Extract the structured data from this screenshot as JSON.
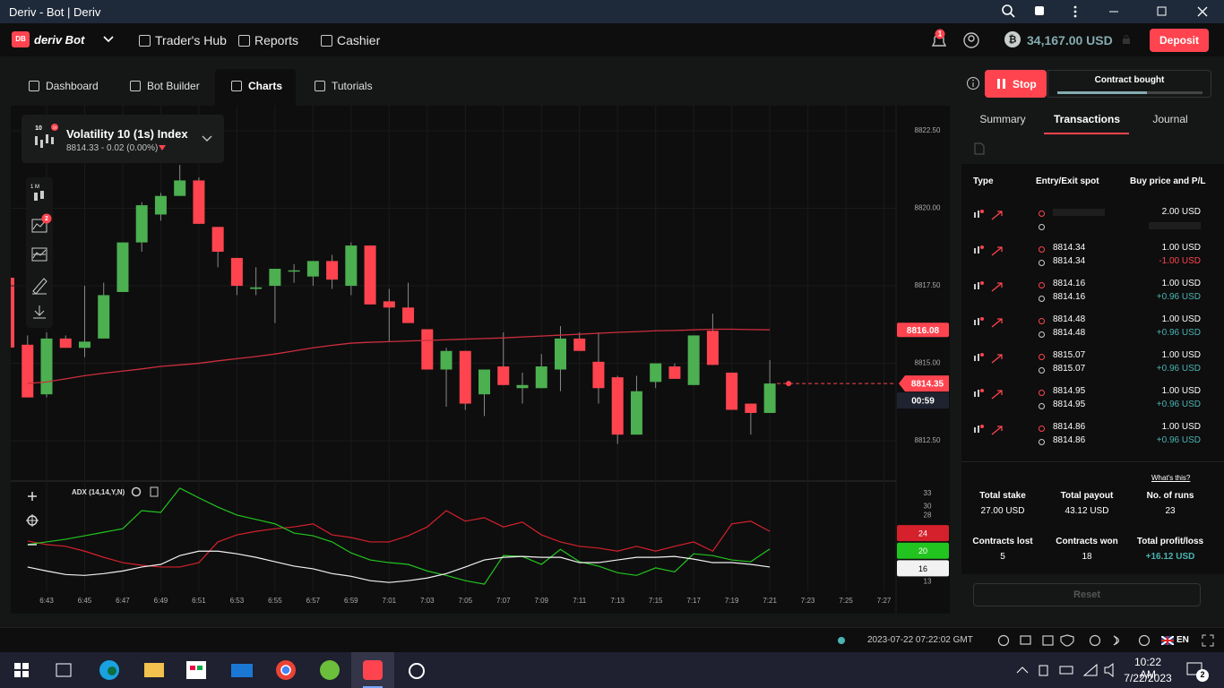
{
  "window": {
    "title": "Deriv - Bot | Deriv"
  },
  "header": {
    "badge": "DB",
    "brand": "deriv Bot",
    "nav": [
      "Trader's Hub",
      "Reports",
      "Cashier"
    ],
    "notifications": "1",
    "balance": "34,167.00 USD",
    "deposit": "Deposit"
  },
  "tabs": [
    "Dashboard",
    "Bot Builder",
    "Charts",
    "Tutorials"
  ],
  "symbol": {
    "name": "Volatility 10 (1s) Index",
    "quote": "8814.33 - 0.02 (0.00%)",
    "icon_label": "10",
    "icon_badge": "1s"
  },
  "toolbar": {
    "interval": "1 M",
    "indicator_count": "2"
  },
  "chart_data": [
    {
      "type": "candlestick",
      "categories": [
        null,
        "6:43",
        null,
        "6:45",
        null,
        "6:47",
        null,
        "6:49",
        null,
        "6:51",
        null,
        "6:53",
        null,
        "6:55",
        null,
        "6:57",
        null,
        "6:59",
        null,
        "7:01",
        null,
        "7:03",
        null,
        "7:05",
        null,
        "7:07",
        null,
        "7:09",
        null,
        "7:11",
        null,
        "7:13",
        null,
        "7:15",
        null,
        "7:17",
        null,
        "7:19",
        null,
        "7:21",
        null,
        "7:23",
        null,
        "7:25",
        null,
        "7:27"
      ],
      "open": [
        8815.6,
        8814.0,
        8815.8,
        8815.5,
        8815.8,
        8817.3,
        8818.9,
        8819.8,
        8820.4,
        8820.9,
        8819.4,
        8818.4,
        8817.4,
        8817.5,
        8817.98,
        8817.8,
        8818.3,
        8817.5,
        8818.8,
        8817.0,
        8816.8,
        8816.1,
        8814.8,
        8815.4,
        8814.0,
        8814.9,
        8814.2,
        8814.2,
        8814.8,
        8815.8,
        8815.05,
        8814.55,
        8812.7,
        8814.4,
        8814.9,
        8814.3,
        8816.05,
        8814.7,
        8813.7,
        8813.4,
        null,
        null,
        null,
        null,
        null,
        null
      ],
      "high": [
        8815.9,
        8816.0,
        8815.9,
        8817.5,
        8817.6,
        8818.9,
        8820.2,
        8820.5,
        8821.4,
        8821.0,
        8819.4,
        8818.4,
        8818.1,
        8818.05,
        8818.2,
        8818.3,
        8818.5,
        8818.9,
        8818.8,
        8817.4,
        8817.6,
        8816.1,
        8815.5,
        8815.4,
        8814.8,
        8816.0,
        8814.7,
        8815.3,
        8816.2,
        8816.0,
        8816.0,
        8814.6,
        8814.6,
        8815.0,
        8815.0,
        8815.9,
        8816.6,
        8814.7,
        8813.7,
        8815.1,
        null,
        null,
        null,
        null,
        null,
        null
      ],
      "low": [
        8813.9,
        8813.9,
        8815.5,
        8815.2,
        8815.8,
        8817.3,
        8818.6,
        8819.6,
        8820.4,
        8819.5,
        8818.1,
        8817.2,
        8817.2,
        8816.3,
        8817.6,
        8817.5,
        8817.4,
        8817.2,
        8816.9,
        8815.7,
        8816.3,
        8814.8,
        8813.6,
        8813.5,
        8813.3,
        8814.3,
        8813.7,
        8814.2,
        8814.1,
        8815.4,
        8813.7,
        8812.4,
        8812.7,
        8814.2,
        8814.5,
        8814.3,
        8814.95,
        8813.5,
        8812.7,
        8813.4,
        null,
        null,
        null,
        null,
        null,
        null
      ],
      "close": [
        8813.9,
        8815.8,
        8815.5,
        8815.7,
        8817.2,
        8818.9,
        8820.1,
        8820.4,
        8820.9,
        8819.5,
        8818.6,
        8817.5,
        8817.45,
        8818.05,
        8818.0,
        8818.3,
        8817.7,
        8818.8,
        8816.9,
        8816.8,
        8816.3,
        8814.8,
        8815.4,
        8813.7,
        8814.8,
        8814.3,
        8814.3,
        8814.9,
        8815.8,
        8815.4,
        8814.2,
        8812.7,
        8814.1,
        8815.0,
        8814.5,
        8815.9,
        8814.95,
        8813.5,
        8813.4,
        8814.35,
        null,
        null,
        null,
        null,
        null,
        null
      ],
      "up_color": "#4caf50",
      "down_color": "#ff444f",
      "ma": {
        "color": "#cc2e3d",
        "values": [
          8814.35,
          8814.4,
          8814.5,
          8814.6,
          8814.68,
          8814.75,
          8814.82,
          8814.9,
          8814.95,
          8815.0,
          8815.08,
          8815.15,
          8815.22,
          8815.3,
          8815.4,
          8815.5,
          8815.58,
          8815.65,
          8815.68,
          8815.7,
          8815.72,
          8815.74,
          8815.76,
          8815.78,
          8815.8,
          8815.82,
          8815.85,
          8815.88,
          8815.91,
          8815.94,
          8815.97,
          8816.0,
          8816.02,
          8816.05,
          8816.06,
          8816.08,
          8816.1,
          8816.1,
          8816.09,
          8816.08,
          null,
          null,
          null,
          null,
          null,
          null
        ]
      },
      "ma_last": {
        "value": 8816.08,
        "label": "8816.08"
      },
      "last_price": {
        "value": 8814.35,
        "label": "8814.35"
      },
      "countdown": "00:59",
      "ylim": [
        8811.26,
        8823.31
      ],
      "yticks": [
        {
          "value": 8812.5,
          "label": "8812.50"
        },
        {
          "value": 8815,
          "label": "8815.00"
        },
        {
          "value": 8817.5,
          "label": "8817.50"
        },
        {
          "value": 8820,
          "label": "8820.00"
        },
        {
          "value": 8822.5,
          "label": "8822.50"
        }
      ],
      "grid": true
    },
    {
      "type": "line",
      "title": "ADX (14,14,Y,N)",
      "categories": [
        null,
        "6:43",
        null,
        "6:45",
        null,
        "6:47",
        null,
        "6:49",
        null,
        "6:51",
        null,
        "6:53",
        null,
        "6:55",
        null,
        "6:57",
        null,
        "6:59",
        null,
        "7:01",
        null,
        "7:03",
        null,
        "7:05",
        null,
        "7:07",
        null,
        "7:09",
        null,
        "7:11",
        null,
        "7:13",
        null,
        "7:15",
        null,
        "7:17",
        null,
        "7:19",
        null,
        "7:21",
        null,
        "7:23",
        null,
        "7:25",
        null,
        "7:27"
      ],
      "series": [
        {
          "color": "#d4212c",
          "last": 24,
          "values": [
            22.2,
            21.4,
            21.0,
            19.9,
            18.5,
            17.3,
            16.7,
            16.3,
            16.3,
            17.3,
            22.0,
            23.6,
            24.4,
            25.0,
            25.4,
            26.1,
            23.6,
            23.0,
            22.0,
            22.0,
            23.4,
            25.4,
            29.1,
            26.7,
            27.5,
            25.4,
            26.5,
            23.6,
            22.0,
            21.0,
            20.6,
            19.9,
            21.0,
            19.9,
            21.0,
            22.0,
            19.9,
            26.1,
            26.7,
            24.4,
            null,
            null,
            null,
            null,
            null,
            null
          ]
        },
        {
          "color": "#22c51f",
          "last": 20,
          "values": [
            21.4,
            22.0,
            22.6,
            23.4,
            24.2,
            25.0,
            29.1,
            28.7,
            34.2,
            32.0,
            29.9,
            28.1,
            27.1,
            26.1,
            24.0,
            23.4,
            22.0,
            19.5,
            17.9,
            17.3,
            16.9,
            15.4,
            14.4,
            13.2,
            12.4,
            18.9,
            18.7,
            16.9,
            20.3,
            17.5,
            16.5,
            15.0,
            14.4,
            16.1,
            15.2,
            19.3,
            18.9,
            17.9,
            17.5,
            20.4,
            null,
            null,
            null,
            null,
            null,
            null
          ]
        },
        {
          "color": "#f2f2f2",
          "last": 16,
          "values": [
            16.3,
            15.4,
            14.6,
            14.4,
            14.8,
            15.4,
            16.3,
            16.9,
            18.9,
            19.9,
            19.9,
            19.3,
            18.5,
            17.5,
            16.5,
            15.9,
            14.8,
            14.2,
            13.2,
            12.8,
            13.2,
            13.8,
            14.8,
            16.3,
            17.9,
            18.5,
            18.7,
            18.5,
            18.5,
            17.3,
            17.3,
            17.9,
            18.5,
            18.5,
            18.7,
            18.1,
            17.3,
            17.3,
            16.9,
            16.3,
            null,
            null,
            null,
            null,
            null,
            null
          ]
        }
      ],
      "ylim": [
        10.8,
        35.2
      ],
      "yticks": [
        13,
        28,
        30,
        33
      ]
    }
  ],
  "run_panel": {
    "stop": "Stop",
    "status": "Contract bought",
    "tabs": [
      "Summary",
      "Transactions",
      "Journal"
    ],
    "columns": [
      "Type",
      "Entry/Exit spot",
      "Buy price and P/L"
    ],
    "rows": [
      {
        "buy": "2.00 USD"
      },
      {
        "entry": "8814.34",
        "exit": "8814.34",
        "buy": "1.00 USD",
        "pl": "-1.00 USD"
      },
      {
        "entry": "8814.16",
        "exit": "8814.16",
        "buy": "1.00 USD",
        "pl": "+0.96 USD"
      },
      {
        "entry": "8814.48",
        "exit": "8814.48",
        "buy": "1.00 USD",
        "pl": "+0.96 USD"
      },
      {
        "entry": "8815.07",
        "exit": "8815.07",
        "buy": "1.00 USD",
        "pl": "+0.96 USD"
      },
      {
        "entry": "8814.95",
        "exit": "8814.95",
        "buy": "1.00 USD",
        "pl": "+0.96 USD"
      },
      {
        "entry": "8814.86",
        "exit": "8814.86",
        "buy": "1.00 USD",
        "pl": "+0.96 USD"
      }
    ],
    "help": "What's this?",
    "stats": [
      {
        "label": "Total stake",
        "value": "27.00 USD"
      },
      {
        "label": "Total payout",
        "value": "43.12 USD"
      },
      {
        "label": "No. of runs",
        "value": "23"
      },
      {
        "label": "Contracts lost",
        "value": "5"
      },
      {
        "label": "Contracts won",
        "value": "18"
      },
      {
        "label": "Total profit/loss",
        "value": "+16.12 USD"
      }
    ],
    "reset": "Reset"
  },
  "footer": {
    "timestamp": "2023-07-22 07:22:02 GMT",
    "language": "EN"
  },
  "taskbar": {
    "time": "10:22 AM",
    "date": "7/22/2023",
    "notifications": "2"
  }
}
